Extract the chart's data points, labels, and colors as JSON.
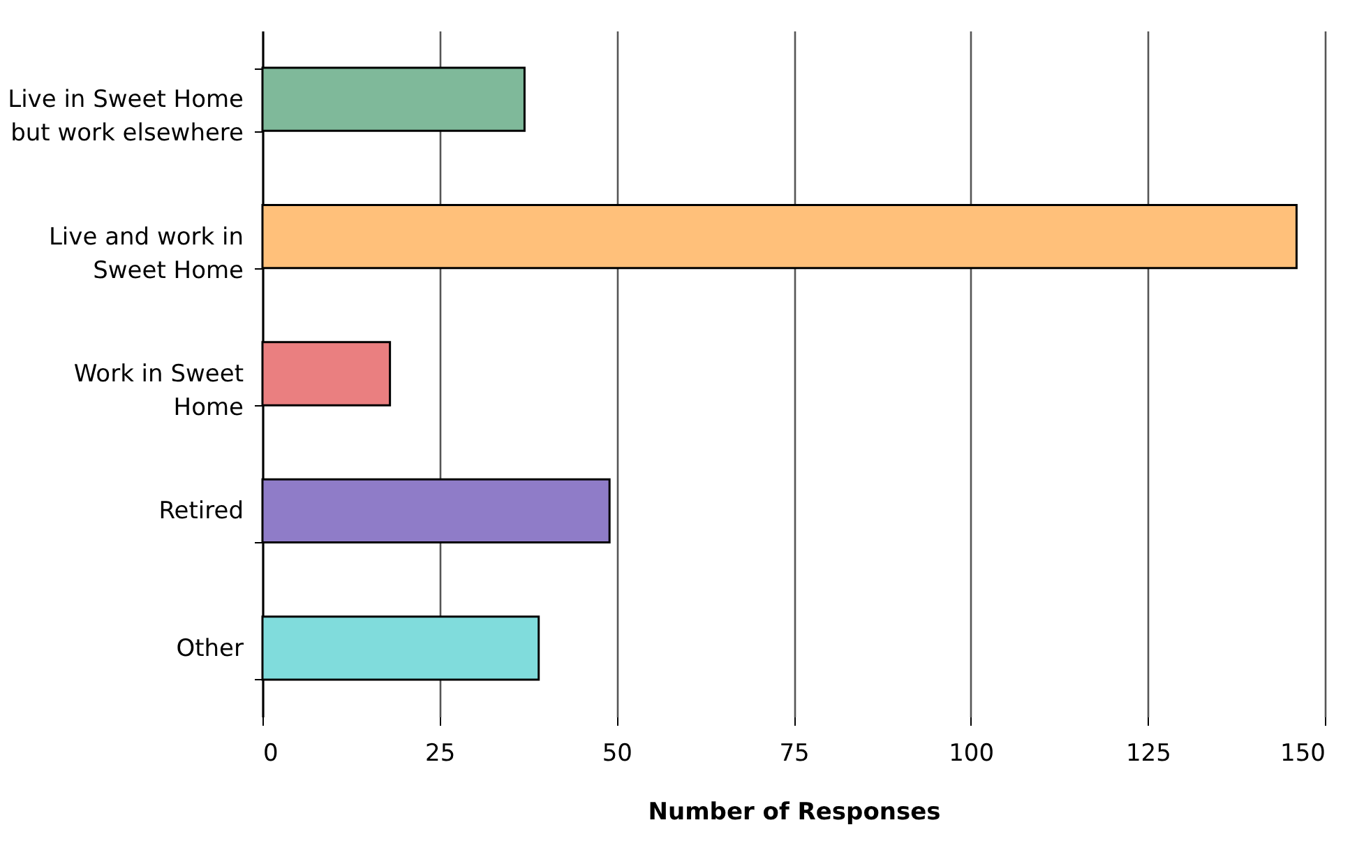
{
  "chart_data": {
    "type": "bar",
    "orientation": "horizontal",
    "xlabel": "Number of Responses",
    "categories": [
      "Live in Sweet Home\nbut work elsewhere",
      "Live and work in\nSweet Home",
      "Work in Sweet\nHome",
      "Retired",
      "Other"
    ],
    "values": [
      37,
      146,
      18,
      49,
      39
    ],
    "colors": [
      "#7fb99a",
      "#ffc07a",
      "#ea7f80",
      "#8f7cc8",
      "#80dcdc"
    ],
    "xlim": [
      0,
      150
    ],
    "xticks": [
      0,
      25,
      50,
      75,
      100,
      125,
      150
    ],
    "grid": "x"
  }
}
